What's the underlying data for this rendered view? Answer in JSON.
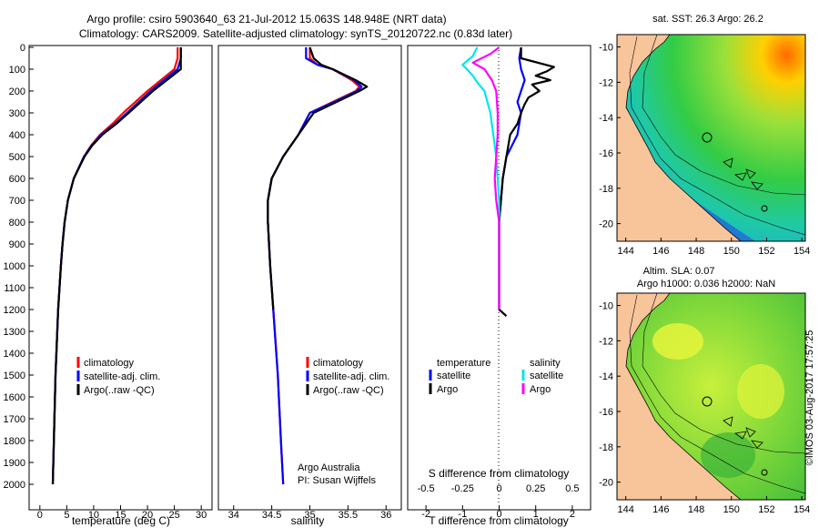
{
  "header": {
    "line1": "Argo profile: csiro 5903640_63 21-Jul-2012 15.063S 148.948E (NRT data)",
    "line2": "Climatology: CARS2009. Satellite-adjusted climatology: synTS_20120722.nc (0.83d later)"
  },
  "colors": {
    "climatology": "#ff0000",
    "satellite": "#0000ff",
    "argo": "#000000",
    "argo_salinity": "#ff00ff",
    "satellite_salinity": "#00e5ee"
  },
  "chart_data": [
    {
      "type": "line",
      "name": "temperature",
      "xlabel": "temperature (deg C)",
      "xticks": [
        0,
        5,
        10,
        15,
        20,
        25,
        30
      ],
      "xlim": [
        -2,
        32
      ],
      "ylim": [
        0,
        2050
      ],
      "yticks": [
        0,
        100,
        200,
        300,
        400,
        500,
        600,
        700,
        800,
        900,
        1000,
        1100,
        1200,
        1300,
        1400,
        1500,
        1600,
        1700,
        1800,
        1900,
        2000
      ],
      "legend": [
        "climatology",
        "satellite-adj. clim.",
        "Argo(..raw -QC)"
      ],
      "series": [
        {
          "name": "climatology",
          "depth": [
            0,
            50,
            100,
            200,
            300,
            350,
            400,
            450,
            500,
            600,
            700,
            800,
            900,
            1000,
            1200,
            1500,
            1800,
            2000
          ],
          "values": [
            25.6,
            25.6,
            25.0,
            20.0,
            15.5,
            13.5,
            11.2,
            9.5,
            8.2,
            6.3,
            5.2,
            4.6,
            4.2,
            3.9,
            3.4,
            2.9,
            2.6,
            2.4
          ]
        },
        {
          "name": "satellite-adj. clim.",
          "depth": [
            0,
            50,
            100,
            200,
            300,
            350,
            400,
            450,
            500,
            600,
            700,
            800,
            900,
            1000,
            1200,
            1500,
            1800,
            2000
          ],
          "values": [
            26.2,
            26.2,
            25.6,
            20.6,
            16.2,
            14.0,
            11.4,
            9.6,
            8.2,
            6.3,
            5.2,
            4.6,
            4.2,
            3.9,
            3.4,
            2.9,
            2.6,
            2.4
          ]
        },
        {
          "name": "Argo(..raw -QC)",
          "depth": [
            0,
            50,
            100,
            200,
            300,
            350,
            400,
            450,
            500,
            600,
            700,
            800,
            900,
            1000,
            1200,
            1500,
            1800,
            2000
          ],
          "values": [
            26.2,
            26.2,
            26.2,
            21.0,
            16.5,
            14.2,
            11.6,
            9.7,
            8.3,
            6.3,
            5.2,
            4.6,
            4.2,
            3.9,
            3.4,
            2.9,
            2.6,
            2.4
          ]
        }
      ]
    },
    {
      "type": "line",
      "name": "salinity",
      "xlabel": "salinity",
      "xticks": [
        34,
        34.5,
        35,
        35.5,
        36
      ],
      "xlim": [
        33.8,
        36.2
      ],
      "legend": [
        "climatology",
        "satellite-adj. clim.",
        "Argo(..raw -QC)"
      ],
      "annotation": [
        "Argo Australia",
        "PI: Susan Wijffels"
      ],
      "series": [
        {
          "name": "climatology",
          "depth": [
            0,
            50,
            80,
            100,
            150,
            180,
            200,
            250,
            300,
            400,
            500,
            600,
            700,
            800,
            1000,
            1200,
            1500,
            1800,
            2000
          ],
          "values": [
            35.0,
            35.0,
            35.1,
            35.3,
            35.55,
            35.65,
            35.6,
            35.3,
            35.0,
            34.85,
            34.65,
            34.5,
            34.45,
            34.45,
            34.48,
            34.52,
            34.58,
            34.62,
            34.65
          ]
        },
        {
          "name": "satellite-adj. clim.",
          "depth": [
            0,
            50,
            80,
            100,
            150,
            180,
            200,
            250,
            300,
            400,
            500,
            600,
            700,
            800,
            1000,
            1200,
            1500,
            1800,
            2000
          ],
          "values": [
            34.95,
            34.95,
            35.1,
            35.3,
            35.58,
            35.68,
            35.62,
            35.32,
            35.0,
            34.85,
            34.65,
            34.5,
            34.45,
            34.45,
            34.48,
            34.52,
            34.58,
            34.62,
            34.65
          ]
        },
        {
          "name": "Argo(..raw -QC)",
          "depth": [
            0,
            50,
            80,
            100,
            150,
            180,
            200,
            250,
            300,
            400,
            500,
            600,
            700,
            800,
            1000,
            1200
          ],
          "values": [
            35.0,
            35.05,
            35.15,
            35.3,
            35.6,
            35.75,
            35.65,
            35.35,
            35.05,
            34.85,
            34.65,
            34.5,
            34.45,
            34.45,
            34.48,
            34.52
          ]
        }
      ]
    },
    {
      "type": "line",
      "name": "difference",
      "xlabel_top": "S difference from climatology",
      "xlabel": "T difference from climatology",
      "xticks_top": [
        -0.5,
        -0.25,
        0,
        0.25,
        0.5
      ],
      "xticks": [
        -2,
        -1,
        0,
        1,
        2
      ],
      "xlim": [
        -2.5,
        2.5
      ],
      "legend_temperature_title": "temperature",
      "legend_salinity_title": "salinity",
      "legend_temperature": [
        "satellite",
        "Argo"
      ],
      "legend_salinity": [
        "satellite",
        "Argo"
      ],
      "series": [
        {
          "name": "T satellite",
          "depth": [
            0,
            50,
            100,
            150,
            200,
            250,
            300,
            400,
            500,
            600,
            700,
            800,
            1000,
            1200
          ],
          "values": [
            0.6,
            0.55,
            0.6,
            0.7,
            0.6,
            0.5,
            0.6,
            0.5,
            0.2,
            0.1,
            0.05,
            0.0,
            0.0,
            0.0
          ]
        },
        {
          "name": "T Argo",
          "depth": [
            0,
            50,
            90,
            110,
            130,
            150,
            170,
            200,
            230,
            260,
            300,
            350,
            400,
            500,
            600,
            700,
            800,
            1000,
            1200,
            1230
          ],
          "values": [
            0.6,
            0.6,
            1.5,
            1.3,
            1.0,
            1.4,
            0.9,
            1.1,
            0.8,
            0.7,
            0.6,
            0.5,
            0.3,
            0.2,
            0.1,
            0.05,
            0.0,
            0.0,
            0.0,
            0.2
          ]
        },
        {
          "name": "S satellite",
          "depth": [
            0,
            40,
            80,
            100,
            130,
            160,
            200,
            250,
            300,
            400,
            500,
            600,
            700,
            800,
            1000,
            1200
          ],
          "values": [
            -0.15,
            -0.18,
            -0.25,
            -0.22,
            -0.18,
            -0.15,
            -0.1,
            -0.08,
            -0.06,
            -0.04,
            -0.02,
            -0.01,
            0.0,
            0.0,
            0.0,
            0.0
          ]
        },
        {
          "name": "S Argo",
          "depth": [
            0,
            30,
            70,
            100,
            150,
            200,
            300,
            400,
            500,
            600,
            700,
            800,
            1000,
            1200
          ],
          "values": [
            0.0,
            -0.06,
            -0.18,
            -0.1,
            -0.05,
            -0.02,
            -0.01,
            -0.01,
            -0.02,
            -0.03,
            -0.02,
            0.0,
            0.0,
            0.0
          ]
        }
      ]
    },
    {
      "type": "heatmap",
      "name": "sst map",
      "title": "sat. SST: 26.3 Argo: 26.2",
      "xticks": [
        144,
        146,
        148,
        150,
        152,
        154
      ],
      "yticks": [
        -10,
        -12,
        -14,
        -16,
        -18,
        -20
      ],
      "xlim": [
        143.5,
        154.2
      ],
      "ylim": [
        -21,
        -9.3
      ]
    },
    {
      "type": "heatmap",
      "name": "sla map",
      "title_line1": "Altim. SLA: 0.07",
      "title_line2": "Argo h1000: 0.036 h2000: NaN",
      "xticks": [
        144,
        146,
        148,
        150,
        152,
        154
      ],
      "yticks": [
        -10,
        -12,
        -14,
        -16,
        -18,
        -20
      ],
      "xlim": [
        143.5,
        154.2
      ],
      "ylim": [
        -21,
        -9.3
      ]
    }
  ],
  "footer": {
    "timestamp": "©IMOS 03-Aug-2017 17:57:25"
  }
}
